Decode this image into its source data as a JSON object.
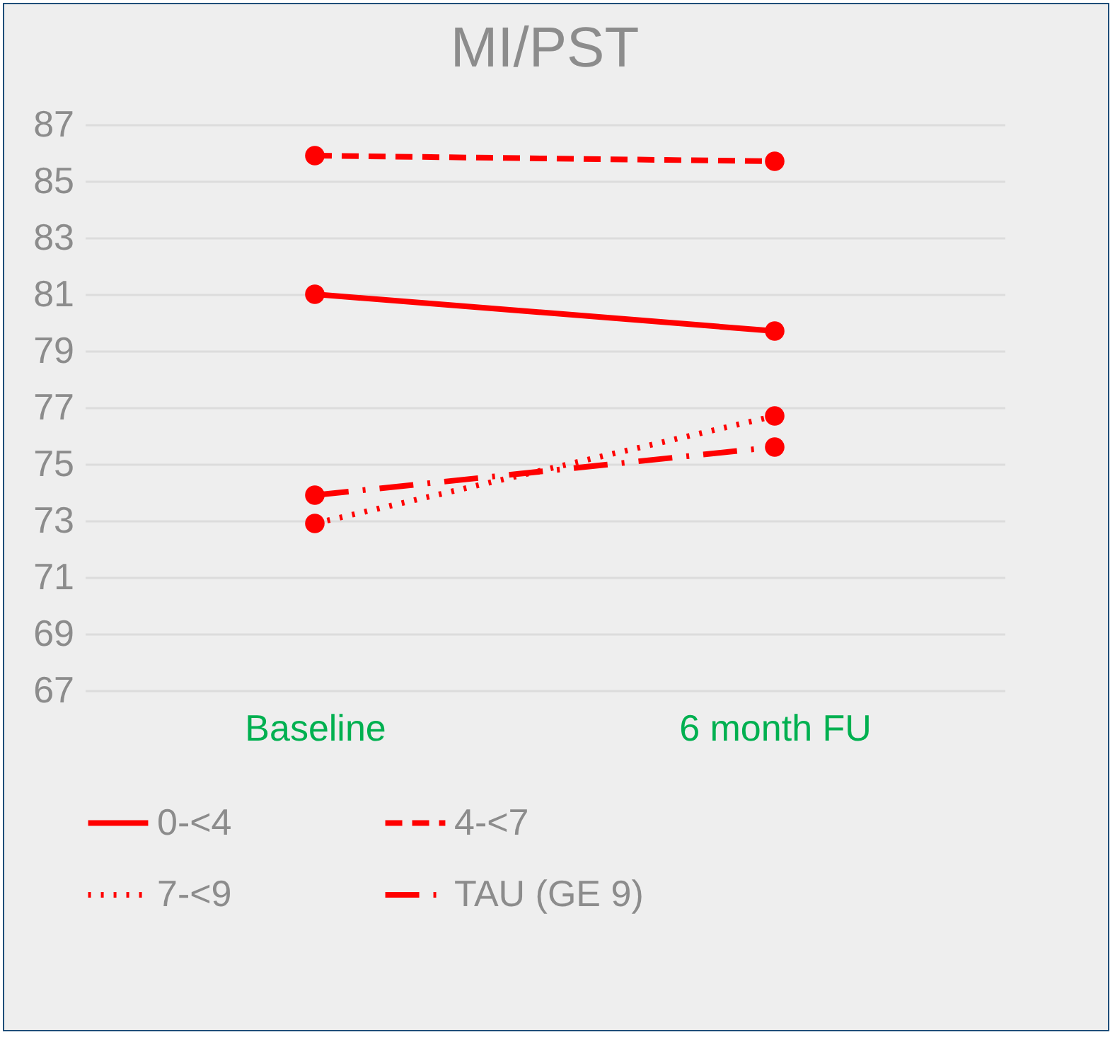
{
  "chart_data": {
    "type": "line",
    "title": "MI/PST",
    "categories": [
      "Baseline",
      "6 month FU"
    ],
    "series": [
      {
        "name": "0-<4",
        "color": "#ff0000",
        "line_style": "solid",
        "values": [
          81.0,
          79.7
        ]
      },
      {
        "name": "4-<7",
        "color": "#ff0000",
        "line_style": "dashed",
        "values": [
          85.9,
          85.7
        ]
      },
      {
        "name": "7-<9",
        "color": "#ff0000",
        "line_style": "dotted",
        "values": [
          72.9,
          76.7
        ]
      },
      {
        "name": "TAU (GE 9)",
        "color": "#ff0000",
        "line_style": "dashdot",
        "values": [
          73.9,
          75.6
        ]
      }
    ],
    "ylim": [
      67,
      87
    ],
    "yticks": [
      67,
      69,
      71,
      73,
      75,
      77,
      79,
      81,
      83,
      85,
      87
    ],
    "grid": "y",
    "legend": "bottom",
    "marker": "circle"
  }
}
